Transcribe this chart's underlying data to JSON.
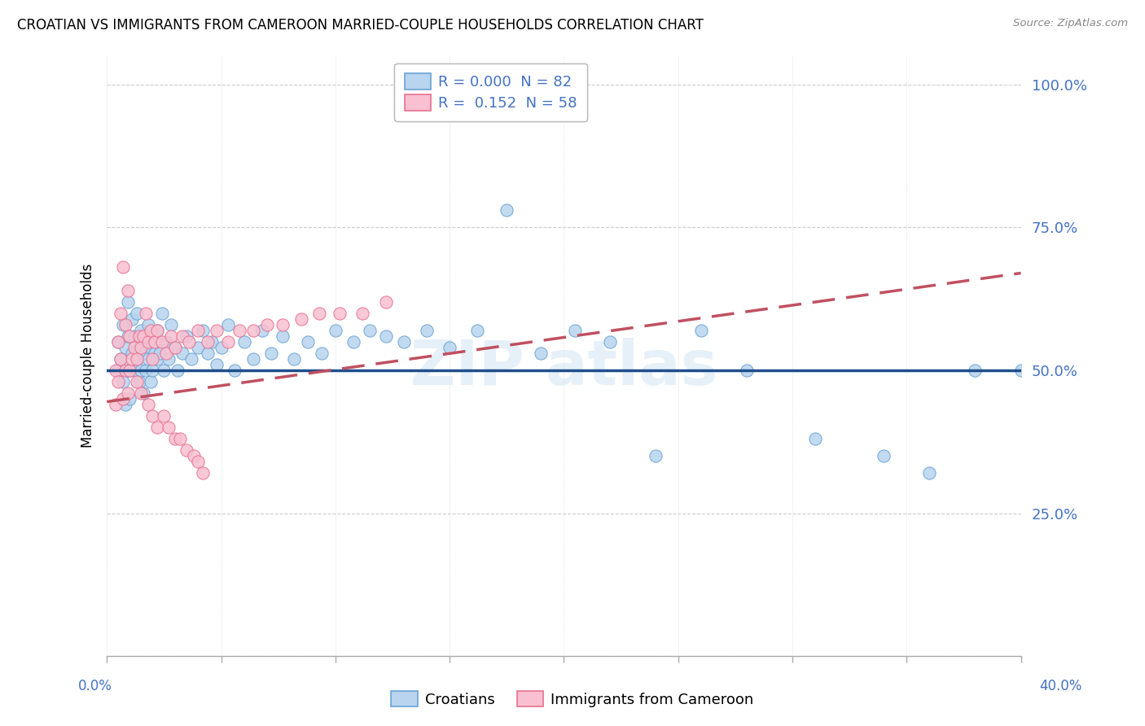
{
  "title": "CROATIAN VS IMMIGRANTS FROM CAMEROON MARRIED-COUPLE HOUSEHOLDS CORRELATION CHART",
  "source": "Source: ZipAtlas.com",
  "ylabel": "Married-couple Households",
  "ytick_positions": [
    0.0,
    0.25,
    0.5,
    0.75,
    1.0
  ],
  "ytick_labels": [
    "",
    "25.0%",
    "50.0%",
    "75.0%",
    "100.0%"
  ],
  "legend_entries_r": [
    "R = 0.000  N = 82",
    "R =  0.152  N = 58"
  ],
  "legend_bottom": [
    "Croatians",
    "Immigrants from Cameroon"
  ],
  "scatter_blue_face": "#b8d4ee",
  "scatter_blue_edge": "#6aa3d5",
  "scatter_pink_face": "#f8c0d0",
  "scatter_pink_edge": "#e87090",
  "trend_blue_color": "#1f4e8c",
  "trend_pink_color": "#c05060",
  "trend_pink_dash": [
    8,
    4
  ],
  "xlim": [
    0.0,
    0.4
  ],
  "ylim": [
    0.0,
    1.05
  ],
  "blue_trend_y": 0.5,
  "pink_trend_x0": 0.0,
  "pink_trend_y0": 0.445,
  "pink_trend_x1": 0.4,
  "pink_trend_y1": 0.67,
  "blue_x": [
    0.005,
    0.005,
    0.006,
    0.007,
    0.007,
    0.008,
    0.008,
    0.009,
    0.009,
    0.009,
    0.01,
    0.01,
    0.011,
    0.011,
    0.012,
    0.012,
    0.013,
    0.013,
    0.014,
    0.014,
    0.015,
    0.015,
    0.016,
    0.016,
    0.017,
    0.017,
    0.018,
    0.018,
    0.019,
    0.019,
    0.02,
    0.02,
    0.021,
    0.022,
    0.022,
    0.023,
    0.024,
    0.025,
    0.026,
    0.027,
    0.028,
    0.03,
    0.031,
    0.033,
    0.035,
    0.037,
    0.04,
    0.042,
    0.044,
    0.046,
    0.048,
    0.05,
    0.053,
    0.056,
    0.06,
    0.064,
    0.068,
    0.072,
    0.077,
    0.082,
    0.088,
    0.094,
    0.1,
    0.108,
    0.115,
    0.122,
    0.13,
    0.14,
    0.15,
    0.162,
    0.175,
    0.19,
    0.205,
    0.22,
    0.24,
    0.26,
    0.28,
    0.31,
    0.34,
    0.36,
    0.38,
    0.4
  ],
  "blue_y": [
    0.5,
    0.55,
    0.52,
    0.48,
    0.58,
    0.44,
    0.54,
    0.5,
    0.56,
    0.62,
    0.5,
    0.45,
    0.53,
    0.59,
    0.5,
    0.56,
    0.52,
    0.6,
    0.48,
    0.54,
    0.5,
    0.57,
    0.53,
    0.46,
    0.55,
    0.5,
    0.52,
    0.58,
    0.54,
    0.48,
    0.5,
    0.56,
    0.53,
    0.52,
    0.57,
    0.53,
    0.6,
    0.5,
    0.55,
    0.52,
    0.58,
    0.54,
    0.5,
    0.53,
    0.56,
    0.52,
    0.54,
    0.57,
    0.53,
    0.55,
    0.51,
    0.54,
    0.58,
    0.5,
    0.55,
    0.52,
    0.57,
    0.53,
    0.56,
    0.52,
    0.55,
    0.53,
    0.57,
    0.55,
    0.57,
    0.56,
    0.55,
    0.57,
    0.54,
    0.57,
    0.78,
    0.53,
    0.57,
    0.55,
    0.35,
    0.57,
    0.5,
    0.38,
    0.35,
    0.32,
    0.5,
    0.5
  ],
  "pink_x": [
    0.004,
    0.004,
    0.005,
    0.005,
    0.006,
    0.006,
    0.007,
    0.007,
    0.008,
    0.008,
    0.009,
    0.009,
    0.01,
    0.01,
    0.011,
    0.012,
    0.013,
    0.014,
    0.015,
    0.016,
    0.017,
    0.018,
    0.019,
    0.02,
    0.021,
    0.022,
    0.024,
    0.026,
    0.028,
    0.03,
    0.033,
    0.036,
    0.04,
    0.044,
    0.048,
    0.053,
    0.058,
    0.064,
    0.07,
    0.077,
    0.085,
    0.093,
    0.102,
    0.112,
    0.122,
    0.013,
    0.015,
    0.018,
    0.02,
    0.022,
    0.025,
    0.027,
    0.03,
    0.032,
    0.035,
    0.038,
    0.04,
    0.042
  ],
  "pink_y": [
    0.5,
    0.44,
    0.55,
    0.48,
    0.6,
    0.52,
    0.68,
    0.45,
    0.58,
    0.5,
    0.64,
    0.46,
    0.56,
    0.5,
    0.52,
    0.54,
    0.52,
    0.56,
    0.54,
    0.56,
    0.6,
    0.55,
    0.57,
    0.52,
    0.55,
    0.57,
    0.55,
    0.53,
    0.56,
    0.54,
    0.56,
    0.55,
    0.57,
    0.55,
    0.57,
    0.55,
    0.57,
    0.57,
    0.58,
    0.58,
    0.59,
    0.6,
    0.6,
    0.6,
    0.62,
    0.48,
    0.46,
    0.44,
    0.42,
    0.4,
    0.42,
    0.4,
    0.38,
    0.38,
    0.36,
    0.35,
    0.34,
    0.32
  ]
}
